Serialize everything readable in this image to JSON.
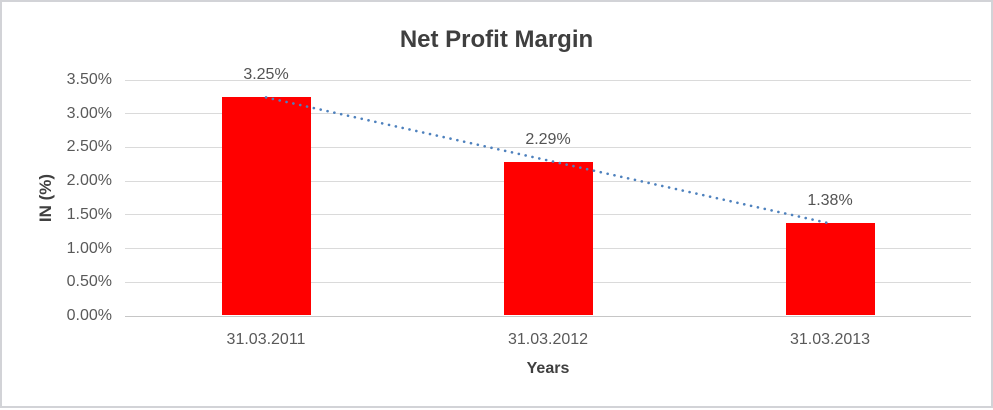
{
  "chart_data": {
    "type": "bar",
    "title": "Net Profit Margin",
    "xlabel": "Years",
    "ylabel": "IN (%)",
    "categories": [
      "31.03.2011",
      "31.03.2012",
      "31.03.2013"
    ],
    "values": [
      3.25,
      2.29,
      1.38
    ],
    "data_labels": [
      "3.25%",
      "2.29%",
      "1.38%"
    ],
    "y_ticks": [
      "0.00%",
      "0.50%",
      "1.00%",
      "1.50%",
      "2.00%",
      "2.50%",
      "3.00%",
      "3.50%"
    ],
    "ylim": [
      0,
      3.5
    ],
    "y_step": 0.5,
    "grid": true,
    "legend": "none",
    "bar_color": "#ff0000",
    "trendline": {
      "type": "linear-dotted",
      "color": "#4e81bd",
      "start_value": 3.242,
      "end_value": 1.372
    }
  },
  "colors": {
    "gridline": "#dadada",
    "axis_line": "#c6c6c6",
    "tick_text": "#595959",
    "data_label_text": "#535353",
    "title_text": "#3f3f3f",
    "frame_border": "#d2d3d7",
    "background": "#ffffff"
  }
}
